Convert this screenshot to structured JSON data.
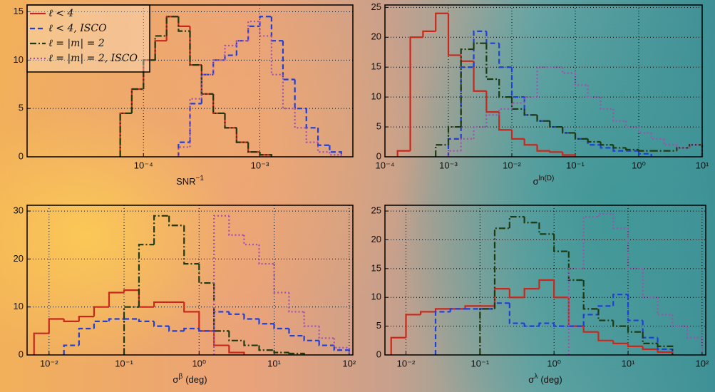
{
  "chart_data": [
    {
      "type": "histogram",
      "xscale": "log",
      "grid": true,
      "legend": "upper left",
      "xlabel": "SNR",
      "xlabel_sup": "−1",
      "xlim": [
        1e-05,
        0.0063
      ],
      "ylim": [
        0,
        15.7
      ],
      "xticks": [
        {
          "value": 0.0001,
          "label": "10⁻⁴"
        },
        {
          "value": 0.001,
          "label": "10⁻³"
        }
      ],
      "yticks": [
        0,
        5,
        10,
        15
      ],
      "series": [
        {
          "name": "ℓ < 4",
          "color": "#c8281c",
          "linestyle": "solid",
          "bins": [
            6.31e-05,
            7.94e-05,
            0.0001,
            0.000126,
            0.000158,
            0.0002,
            0.000251,
            0.000316,
            0.000398,
            0.000501,
            0.000631,
            0.000794,
            0.001,
            0.00126
          ],
          "values": [
            4.5,
            7,
            10,
            12,
            14.5,
            13.5,
            9.5,
            6.5,
            4.5,
            3,
            1.5,
            0.5,
            0.2
          ]
        },
        {
          "name": "ℓ < 4, ISCO",
          "color": "#1f3fd6",
          "linestyle": "dashed",
          "bins": [
            0.0002,
            0.000251,
            0.000316,
            0.000398,
            0.000501,
            0.000631,
            0.000794,
            0.001,
            0.00126,
            0.00158,
            0.002,
            0.00251,
            0.00316,
            0.00398,
            0.00501
          ],
          "values": [
            1.5,
            5.5,
            8.5,
            10,
            10.5,
            12,
            13.5,
            14.5,
            12,
            8,
            5,
            3,
            1.2,
            0.5
          ]
        },
        {
          "name": "ℓ = |m| = 2",
          "color": "#1e3a10",
          "linestyle": "dashdot",
          "bins": [
            6.31e-05,
            7.94e-05,
            0.0001,
            0.000126,
            0.000158,
            0.0002,
            0.000251,
            0.000316,
            0.000398,
            0.000501,
            0.000631,
            0.000794,
            0.001,
            0.00126
          ],
          "values": [
            4.5,
            7,
            10,
            12.5,
            14.5,
            13,
            9.5,
            6.5,
            4.5,
            3,
            1.5,
            0.5,
            0.2
          ]
        },
        {
          "name": "ℓ = |m| = 2, ISCO",
          "color": "#a050b0",
          "linestyle": "dotted",
          "bins": [
            0.0002,
            0.000251,
            0.000316,
            0.000398,
            0.000501,
            0.000631,
            0.000794,
            0.001,
            0.00126,
            0.00158,
            0.002,
            0.00251,
            0.00316,
            0.00398,
            0.00501
          ],
          "values": [
            1,
            6,
            8.5,
            10,
            11.5,
            12,
            14,
            12.5,
            8.5,
            5,
            3,
            1.5,
            0.5,
            0.2
          ]
        }
      ]
    },
    {
      "type": "histogram",
      "xscale": "log",
      "grid": true,
      "xlabel": "σ",
      "xlabel_sup": "ln(D)",
      "xlim": [
        0.0001,
        10
      ],
      "ylim": [
        0,
        25.4
      ],
      "xticks": [
        {
          "value": 0.0001,
          "label": "10⁻⁴"
        },
        {
          "value": 0.001,
          "label": "10⁻³"
        },
        {
          "value": 0.01,
          "label": "10⁻²"
        },
        {
          "value": 0.1,
          "label": "10⁻¹"
        },
        {
          "value": 1,
          "label": "10⁰"
        },
        {
          "value": 10,
          "label": "10¹"
        }
      ],
      "yticks": [
        0,
        5,
        10,
        15,
        20,
        25
      ],
      "series": [
        {
          "color": "#c8281c",
          "linestyle": "solid",
          "bins": [
            0.000158,
            0.000251,
            0.000398,
            0.000631,
            0.001,
            0.00158,
            0.00251,
            0.00398,
            0.00631,
            0.01,
            0.0158,
            0.0251,
            0.0398,
            0.0631,
            0.1
          ],
          "values": [
            1,
            20,
            21,
            24,
            17,
            16,
            11,
            7.5,
            4.5,
            3,
            2,
            1,
            0.8,
            0.3
          ]
        },
        {
          "color": "#1f3fd6",
          "linestyle": "dashed",
          "bins": [
            0.001,
            0.00158,
            0.00251,
            0.00398,
            0.00631,
            0.01,
            0.0158,
            0.0251,
            0.0398,
            0.0631,
            0.1,
            0.158,
            0.251,
            0.398,
            0.631,
            1,
            1.58
          ],
          "values": [
            3,
            15,
            21,
            19,
            15,
            10,
            7,
            6,
            5,
            4,
            3,
            2,
            1.5,
            1,
            1,
            0.5
          ]
        },
        {
          "color": "#1e3a10",
          "linestyle": "dashdot",
          "bins": [
            0.000631,
            0.001,
            0.00158,
            0.00251,
            0.00398,
            0.00631,
            0.01,
            0.0158,
            0.0251,
            0.0398,
            0.0631,
            0.1,
            0.158,
            0.251,
            0.398,
            0.631,
            1,
            1.58,
            2.51,
            3.98,
            6.31,
            10
          ],
          "values": [
            2,
            5,
            18,
            19,
            13,
            10,
            8,
            7,
            6,
            5,
            4,
            3,
            2.5,
            2,
            1.5,
            1.2,
            1,
            1,
            1,
            1.5,
            2
          ]
        },
        {
          "color": "#a050b0",
          "linestyle": "dotted",
          "bins": [
            0.001,
            0.00158,
            0.00251,
            0.00398,
            0.00631,
            0.01,
            0.0158,
            0.0251,
            0.0398,
            0.0631,
            0.1,
            0.158,
            0.251,
            0.398,
            0.631,
            1,
            1.58,
            2.51,
            3.98,
            6.31,
            10
          ],
          "values": [
            1,
            3,
            5,
            7,
            8,
            9,
            10,
            15,
            15,
            14,
            12,
            10,
            8,
            6,
            5,
            4,
            3,
            2,
            1.5,
            2
          ]
        }
      ]
    },
    {
      "type": "histogram",
      "xscale": "log",
      "grid": true,
      "xlabel": "σ",
      "xlabel_sup": "β",
      "xlabel_suffix": "(deg)",
      "xlim": [
        0.0051,
        112
      ],
      "ylim": [
        0,
        31.2
      ],
      "xticks": [
        {
          "value": 0.01,
          "label": "10⁻²"
        },
        {
          "value": 0.1,
          "label": "10⁻¹"
        },
        {
          "value": 1,
          "label": "10⁰"
        },
        {
          "value": 10,
          "label": "10¹"
        },
        {
          "value": 100,
          "label": "10²"
        }
      ],
      "yticks": [
        0,
        10,
        20,
        30
      ],
      "series": [
        {
          "color": "#c8281c",
          "linestyle": "solid",
          "bins": [
            0.00631,
            0.01,
            0.0158,
            0.0251,
            0.0398,
            0.0631,
            0.1,
            0.158,
            0.251,
            0.398,
            0.631,
            1,
            1.58,
            2.51,
            3.98
          ],
          "values": [
            4.5,
            7.5,
            7,
            8,
            10,
            13,
            13.5,
            10,
            11,
            11,
            9,
            5,
            2,
            0.5
          ]
        },
        {
          "color": "#1f3fd6",
          "linestyle": "dashed",
          "bins": [
            0.0158,
            0.0251,
            0.0398,
            0.0631,
            0.1,
            0.158,
            0.251,
            0.398,
            0.631,
            1,
            1.58,
            2.51,
            3.98,
            6.31,
            10,
            15.8,
            25.1,
            39.8,
            63.1,
            100
          ],
          "values": [
            2,
            5.5,
            7,
            7.5,
            7.5,
            7,
            6,
            5,
            5.5,
            5,
            9,
            8.5,
            7.5,
            6.5,
            5.5,
            4,
            3,
            2,
            1
          ]
        },
        {
          "color": "#1e3a10",
          "linestyle": "dashdot",
          "bins": [
            0.1,
            0.158,
            0.251,
            0.398,
            0.631,
            1,
            1.58,
            2.51,
            3.98,
            6.31,
            10,
            15.8,
            25.1
          ],
          "values": [
            10,
            23,
            29,
            27,
            19,
            15,
            5,
            3,
            2,
            1,
            0.5,
            0.3
          ]
        },
        {
          "color": "#a050b0",
          "linestyle": "dotted",
          "bins": [
            1.58,
            2.51,
            3.98,
            6.31,
            10,
            15.8,
            25.1,
            39.8,
            63.1,
            100
          ],
          "values": [
            29,
            25,
            23,
            19,
            13,
            9,
            6,
            3.5,
            1.5
          ]
        }
      ]
    },
    {
      "type": "histogram",
      "xscale": "log",
      "grid": true,
      "xlabel": "σ",
      "xlabel_sup": "λ",
      "xlabel_suffix": "(deg)",
      "xlim": [
        0.0052,
        112
      ],
      "ylim": [
        0,
        26
      ],
      "xticks": [
        {
          "value": 0.01,
          "label": "10⁻²"
        },
        {
          "value": 0.1,
          "label": "10⁻¹"
        },
        {
          "value": 1,
          "label": "10⁰"
        },
        {
          "value": 10,
          "label": "10¹"
        },
        {
          "value": 100,
          "label": "10²"
        }
      ],
      "yticks": [
        0,
        5,
        10,
        15,
        20,
        25
      ],
      "series": [
        {
          "color": "#c8281c",
          "linestyle": "solid",
          "bins": [
            0.00631,
            0.01,
            0.0158,
            0.0251,
            0.0398,
            0.0631,
            0.1,
            0.158,
            0.251,
            0.398,
            0.631,
            1,
            1.58,
            2.51,
            3.98,
            6.31,
            10,
            15.8,
            25.1,
            39.8
          ],
          "values": [
            3,
            7,
            7.5,
            8,
            8,
            8.5,
            8.5,
            11.5,
            10,
            11.5,
            13,
            10,
            5,
            4,
            2.5,
            2,
            1.5,
            1,
            0.5
          ]
        },
        {
          "color": "#1f3fd6",
          "linestyle": "dashed",
          "bins": [
            0.0251,
            0.0398,
            0.0631,
            0.1,
            0.158,
            0.251,
            0.398,
            0.631,
            1,
            1.58,
            2.51,
            3.98,
            6.31,
            10,
            15.8,
            25.1,
            39.8
          ],
          "values": [
            7.5,
            8,
            8,
            8,
            9,
            5.5,
            5,
            5.5,
            5,
            5,
            7,
            8.5,
            10.5,
            6,
            3,
            1
          ]
        },
        {
          "color": "#1e3a10",
          "linestyle": "dashdot",
          "bins": [
            0.1,
            0.158,
            0.251,
            0.398,
            0.631,
            1,
            1.58,
            2.51,
            3.98,
            6.31,
            10,
            15.8,
            25.1,
            39.8
          ],
          "values": [
            8,
            22,
            24,
            23,
            21,
            18,
            13,
            8,
            6,
            5,
            4,
            2,
            1.5
          ]
        },
        {
          "color": "#a050b0",
          "linestyle": "dotted",
          "bins": [
            1.58,
            2.51,
            3.98,
            6.31,
            10,
            15.8,
            25.1,
            39.8,
            63.1,
            100
          ],
          "values": [
            15,
            24,
            24.5,
            22,
            15,
            10,
            7,
            5,
            3
          ]
        }
      ]
    }
  ]
}
